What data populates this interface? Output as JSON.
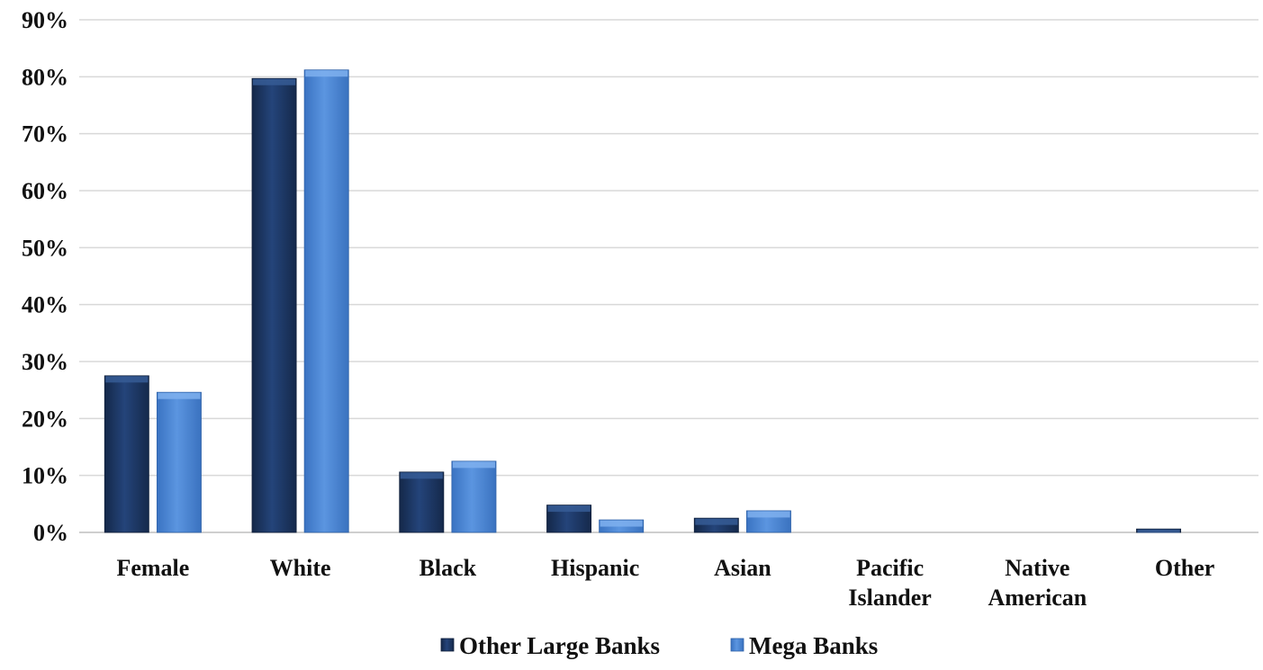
{
  "chart_data": {
    "type": "bar",
    "categories": [
      "Female",
      "White",
      "Black",
      "Hispanic",
      "Asian",
      "Pacific Islander",
      "Native American",
      "Other"
    ],
    "category_lines": [
      [
        "Female"
      ],
      [
        "White"
      ],
      [
        "Black"
      ],
      [
        "Hispanic"
      ],
      [
        "Asian"
      ],
      [
        "Pacific",
        "Islander"
      ],
      [
        "Native",
        "American"
      ],
      [
        "Other"
      ]
    ],
    "series": [
      {
        "name": "Other Large Banks",
        "color": "#1f3a66",
        "values": [
          27.5,
          79.7,
          10.6,
          4.8,
          2.5,
          0,
          0,
          0.6
        ]
      },
      {
        "name": "Mega Banks",
        "color": "#4a86d6",
        "values": [
          24.6,
          81.2,
          12.5,
          2.2,
          3.8,
          0,
          0,
          0
        ]
      }
    ],
    "ylim": [
      0,
      90
    ],
    "y_ticks": [
      0,
      10,
      20,
      30,
      40,
      50,
      60,
      70,
      80,
      90
    ],
    "y_tick_labels": [
      "0%",
      "10%",
      "20%",
      "30%",
      "40%",
      "50%",
      "60%",
      "70%",
      "80%",
      "90%"
    ],
    "grid": true,
    "legend_position": "bottom-center",
    "title": "",
    "xlabel": "",
    "ylabel": ""
  }
}
